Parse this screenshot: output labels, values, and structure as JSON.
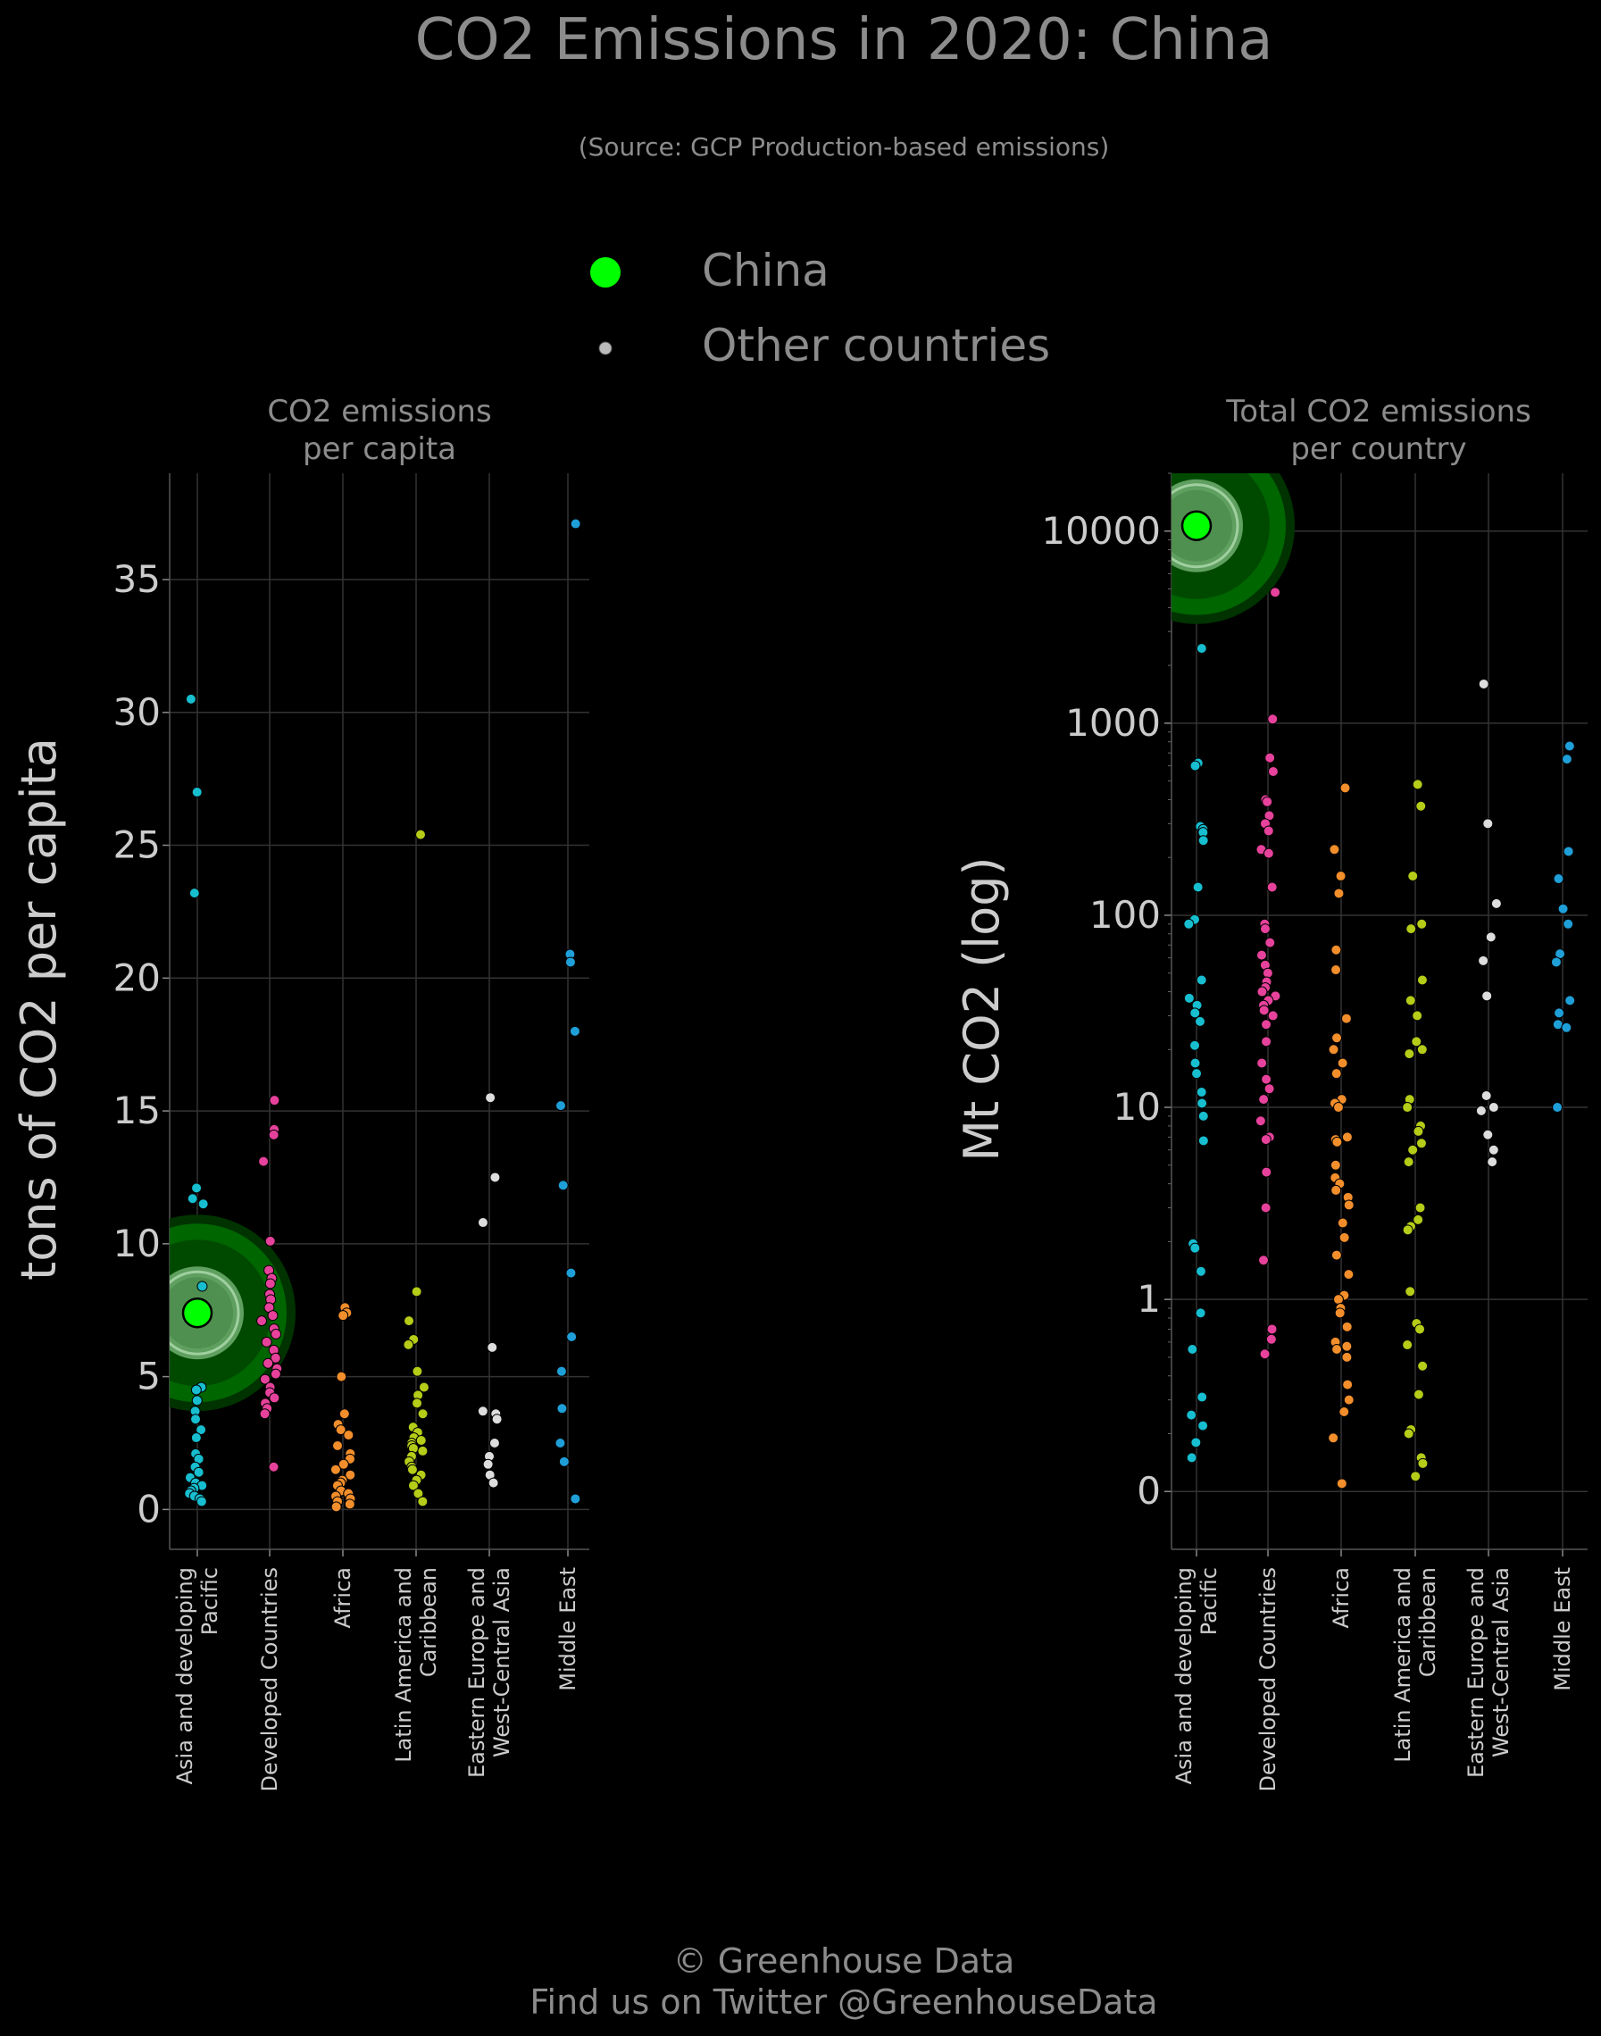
{
  "title": "CO2 Emissions in 2020: China",
  "subtitle": "(Source: GCP Production-based emissions)",
  "legend": {
    "highlight_label": "China",
    "others_label": "Other countries",
    "highlight_color": "#00ff00",
    "others_color": "#bbbbbb"
  },
  "colors": {
    "background": "#000000",
    "grid": "#333333",
    "text": "#cccccc",
    "title": "#8c8c8c",
    "regions": [
      "#17becf",
      "#e7429b",
      "#f28e2b",
      "#b5cc18",
      "#dddddd",
      "#1f9fd8"
    ]
  },
  "footer": {
    "line1": "© Greenhouse Data",
    "line2": "Find us on Twitter @GreenhouseData"
  },
  "chart_data": [
    {
      "type": "scatter",
      "title": "CO2 emissions\nper capita",
      "ylabel": "tons of CO2 per capita",
      "yscale": "linear",
      "ylim": [
        -1.5,
        39
      ],
      "yticks": [
        0,
        5,
        10,
        15,
        20,
        25,
        30,
        35
      ],
      "ytick_labels": [
        "0",
        "5",
        "10",
        "15",
        "20",
        "25",
        "30",
        "35"
      ],
      "grid": true,
      "categories": [
        "Asia and developing\nPacific",
        "Developed Countries",
        "Africa",
        "Latin America and\nCaribbean",
        "Eastern Europe and\nWest-Central Asia",
        "Middle East"
      ],
      "highlight": {
        "name": "China",
        "category": 0,
        "value": 7.4
      },
      "points": [
        [
          30.5,
          27.0,
          23.2,
          12.1,
          11.7,
          11.5,
          8.4,
          4.6,
          4.5,
          4.1,
          3.7,
          3.4,
          3.0,
          2.7,
          2.1,
          1.9,
          1.6,
          1.4,
          1.2,
          1.0,
          0.9,
          0.8,
          0.7,
          0.6,
          0.5,
          0.4,
          0.3
        ],
        [
          15.4,
          14.3,
          14.1,
          13.1,
          10.1,
          9.0,
          8.7,
          8.5,
          8.1,
          7.9,
          7.6,
          7.3,
          7.1,
          6.8,
          6.6,
          6.3,
          6.0,
          5.7,
          5.5,
          5.3,
          5.1,
          4.9,
          4.6,
          4.4,
          4.2,
          4.0,
          3.8,
          3.6,
          1.6
        ],
        [
          7.6,
          7.4,
          7.3,
          5.0,
          3.6,
          3.2,
          3.0,
          2.8,
          2.4,
          2.1,
          1.9,
          1.7,
          1.5,
          1.3,
          1.1,
          1.0,
          0.9,
          0.7,
          0.6,
          0.5,
          0.4,
          0.3,
          0.2,
          0.1
        ],
        [
          25.4,
          8.2,
          7.1,
          6.4,
          6.2,
          5.2,
          4.6,
          4.3,
          4.0,
          3.6,
          3.1,
          2.9,
          2.7,
          2.6,
          2.5,
          2.4,
          2.3,
          2.2,
          2.0,
          1.8,
          1.6,
          1.5,
          1.3,
          1.1,
          0.9,
          0.6,
          0.3
        ],
        [
          15.5,
          12.5,
          10.8,
          6.1,
          3.7,
          3.6,
          3.4,
          2.5,
          2.0,
          1.7,
          1.3,
          1.0
        ],
        [
          37.1,
          20.9,
          20.6,
          18.0,
          15.2,
          12.2,
          8.9,
          6.5,
          5.2,
          3.8,
          2.5,
          1.8,
          0.4
        ]
      ]
    },
    {
      "type": "scatter",
      "title": "Total CO2 emissions\nper country",
      "ylabel": "Mt CO2 (log)",
      "yscale": "log",
      "ylim": [
        0.05,
        20000
      ],
      "yticks": [
        0.1,
        1,
        10,
        100,
        1000,
        10000
      ],
      "ytick_labels": [
        "0",
        "1",
        "10",
        "100",
        "1000",
        "10000"
      ],
      "grid": true,
      "categories": [
        "Asia and developing\nPacific",
        "Developed Countries",
        "Africa",
        "Latin America and\nCaribbean",
        "Eastern Europe and\nWest-Central Asia",
        "Middle East"
      ],
      "highlight": {
        "name": "China",
        "category": 0,
        "value": 10670
      },
      "points": [
        [
          2450,
          620,
          600,
          290,
          280,
          270,
          245,
          140,
          95,
          90,
          46,
          37,
          34,
          31,
          28,
          21,
          17,
          15,
          12,
          10.5,
          9,
          6.7,
          1.95,
          1.85,
          1.4,
          0.85,
          0.55,
          0.31,
          0.25,
          0.22,
          0.18,
          0.15
        ],
        [
          4800,
          1050,
          660,
          560,
          400,
          390,
          330,
          300,
          275,
          220,
          210,
          140,
          90,
          85,
          72,
          62,
          55,
          50,
          45,
          42,
          40,
          38,
          36,
          34,
          32,
          30,
          27,
          22,
          17,
          14,
          12.5,
          11,
          8.5,
          7,
          6.8,
          4.6,
          3,
          1.6,
          0.7,
          0.62,
          0.52
        ],
        [
          460,
          220,
          160,
          130,
          66,
          52,
          29,
          23,
          20,
          17,
          15,
          11,
          10.5,
          10,
          7,
          6.8,
          6.6,
          5,
          4.3,
          4,
          3.7,
          3.4,
          3.1,
          2.5,
          2.1,
          1.7,
          1.35,
          1.05,
          1,
          0.9,
          0.85,
          0.72,
          0.6,
          0.57,
          0.55,
          0.5,
          0.36,
          0.3,
          0.26,
          0.19,
          0.11
        ],
        [
          480,
          370,
          160,
          90,
          85,
          46,
          36,
          30,
          22,
          20,
          19,
          11,
          10,
          8,
          7.5,
          6.5,
          6,
          5.2,
          3,
          2.6,
          2.4,
          2.3,
          1.1,
          0.75,
          0.7,
          0.58,
          0.45,
          0.32,
          0.21,
          0.2,
          0.15,
          0.14,
          0.12
        ],
        [
          1600,
          300,
          115,
          77,
          58,
          38,
          11.5,
          10,
          9.6,
          7.2,
          6,
          5.2
        ],
        [
          760,
          650,
          215,
          155,
          108,
          90,
          63,
          57,
          36,
          31,
          27,
          26,
          10
        ]
      ]
    }
  ]
}
